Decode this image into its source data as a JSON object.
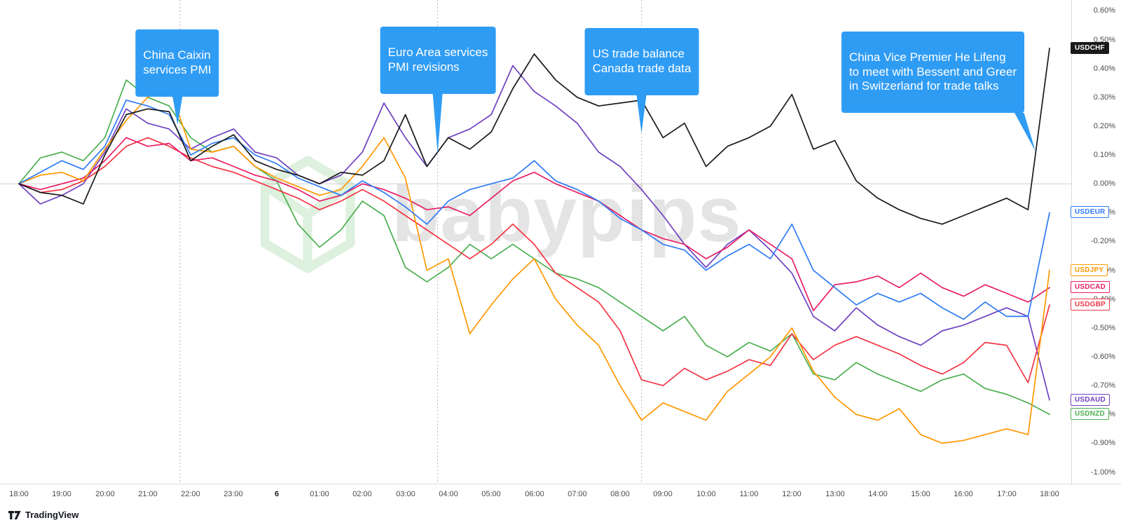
{
  "watermark": {
    "text": "babypips",
    "icon": "babypips-cube-icon"
  },
  "footer": {
    "logo_text": "TradingView"
  },
  "colors": {
    "callout_bg": "#2f9cf4",
    "axis_text": "#4a4a4a",
    "zero_line": "#cfcfcf",
    "event_gridline": "#b5b5b5",
    "axis_border": "#dcdcdc"
  },
  "chart_data": {
    "type": "line",
    "title": "",
    "x_tick_labels": [
      "18:00",
      "19:00",
      "20:00",
      "21:00",
      "22:00",
      "23:00",
      "6",
      "01:00",
      "02:00",
      "03:00",
      "04:00",
      "05:00",
      "06:00",
      "07:00",
      "08:00",
      "09:00",
      "10:00",
      "11:00",
      "12:00",
      "13:00",
      "14:00",
      "15:00",
      "16:00",
      "17:00",
      "18:00"
    ],
    "y_tick_labels": [
      "0.60%",
      "0.50%",
      "0.40%",
      "0.30%",
      "0.20%",
      "0.10%",
      "0.00%",
      "-0.10%",
      "-0.20%",
      "-0.30%",
      "-0.40%",
      "-0.50%",
      "-0.60%",
      "-0.70%",
      "-0.80%",
      "-0.90%",
      "-1.00%"
    ],
    "ylim": [
      -1.04,
      0.6375
    ],
    "x_hours": [
      0,
      24
    ],
    "x_step_hours": 0.5,
    "y_axis_format": "percent",
    "grid": "none",
    "zero_line": true,
    "legend_position": "right-edge-price-labels",
    "series": [
      {
        "name": "USDCHF",
        "color": "#1a1a1a",
        "label_style": "filled",
        "values": [
          0.0,
          -0.03,
          -0.04,
          -0.07,
          0.1,
          0.24,
          0.26,
          0.25,
          0.08,
          0.13,
          0.17,
          0.08,
          0.05,
          0.03,
          0.0,
          0.04,
          0.03,
          0.08,
          0.24,
          0.06,
          0.16,
          0.12,
          0.18,
          0.33,
          0.45,
          0.36,
          0.3,
          0.27,
          0.28,
          0.29,
          0.16,
          0.21,
          0.06,
          0.13,
          0.16,
          0.2,
          0.31,
          0.12,
          0.15,
          0.01,
          -0.05,
          -0.09,
          -0.12,
          -0.14,
          -0.11,
          -0.08,
          -0.05,
          -0.09,
          0.47
        ]
      },
      {
        "name": "USDEUR",
        "color": "#2e7bf6",
        "label_style": "outline",
        "values": [
          0.0,
          0.04,
          0.08,
          0.05,
          0.13,
          0.29,
          0.27,
          0.24,
          0.1,
          0.14,
          0.16,
          0.1,
          0.07,
          0.02,
          -0.01,
          -0.04,
          0.01,
          -0.03,
          -0.08,
          -0.14,
          -0.06,
          -0.02,
          0.0,
          0.02,
          0.08,
          0.01,
          -0.02,
          -0.06,
          -0.12,
          -0.16,
          -0.21,
          -0.23,
          -0.3,
          -0.25,
          -0.21,
          -0.26,
          -0.14,
          -0.3,
          -0.36,
          -0.42,
          -0.38,
          -0.41,
          -0.38,
          -0.43,
          -0.47,
          -0.41,
          -0.46,
          -0.46,
          -0.1
        ]
      },
      {
        "name": "USDJPY",
        "color": "#ff9800",
        "label_style": "outline",
        "values": [
          0.0,
          0.03,
          0.04,
          0.01,
          0.12,
          0.22,
          0.3,
          0.34,
          0.12,
          0.11,
          0.13,
          0.06,
          0.02,
          -0.01,
          -0.04,
          -0.02,
          0.06,
          0.16,
          0.02,
          -0.3,
          -0.26,
          -0.52,
          -0.42,
          -0.33,
          -0.26,
          -0.4,
          -0.49,
          -0.56,
          -0.7,
          -0.82,
          -0.76,
          -0.79,
          -0.82,
          -0.72,
          -0.66,
          -0.6,
          -0.5,
          -0.65,
          -0.74,
          -0.8,
          -0.82,
          -0.78,
          -0.87,
          -0.9,
          -0.89,
          -0.87,
          -0.85,
          -0.87,
          -0.3
        ]
      },
      {
        "name": "USDCAD",
        "color": "#e91e63",
        "label_style": "outline",
        "values": [
          0.0,
          -0.02,
          0.0,
          0.02,
          0.08,
          0.16,
          0.13,
          0.14,
          0.08,
          0.09,
          0.06,
          0.03,
          0.01,
          -0.02,
          -0.06,
          -0.04,
          0.0,
          -0.02,
          -0.05,
          -0.09,
          -0.08,
          -0.11,
          -0.05,
          0.01,
          0.04,
          0.0,
          -0.03,
          -0.06,
          -0.11,
          -0.16,
          -0.19,
          -0.21,
          -0.26,
          -0.22,
          -0.16,
          -0.21,
          -0.26,
          -0.44,
          -0.35,
          -0.34,
          -0.32,
          -0.36,
          -0.31,
          -0.36,
          -0.39,
          -0.35,
          -0.38,
          -0.41,
          -0.36
        ]
      },
      {
        "name": "USDGBP",
        "color": "#f23645",
        "label_style": "outline",
        "values": [
          0.0,
          -0.03,
          -0.02,
          0.01,
          0.06,
          0.13,
          0.16,
          0.13,
          0.09,
          0.06,
          0.04,
          0.01,
          -0.02,
          -0.05,
          -0.09,
          -0.06,
          -0.02,
          -0.06,
          -0.11,
          -0.16,
          -0.21,
          -0.26,
          -0.21,
          -0.14,
          -0.21,
          -0.31,
          -0.36,
          -0.41,
          -0.51,
          -0.68,
          -0.7,
          -0.64,
          -0.68,
          -0.65,
          -0.61,
          -0.63,
          -0.52,
          -0.61,
          -0.56,
          -0.53,
          -0.56,
          -0.59,
          -0.63,
          -0.66,
          -0.62,
          -0.55,
          -0.56,
          -0.69,
          -0.42
        ]
      },
      {
        "name": "USDAUD",
        "color": "#6f42c1",
        "label_style": "outline",
        "values": [
          0.0,
          -0.07,
          -0.04,
          0.0,
          0.11,
          0.26,
          0.21,
          0.19,
          0.12,
          0.16,
          0.19,
          0.11,
          0.09,
          0.03,
          0.0,
          0.03,
          0.11,
          0.28,
          0.16,
          0.06,
          0.16,
          0.19,
          0.24,
          0.41,
          0.32,
          0.27,
          0.21,
          0.11,
          0.06,
          -0.02,
          -0.11,
          -0.21,
          -0.29,
          -0.21,
          -0.16,
          -0.23,
          -0.31,
          -0.46,
          -0.51,
          -0.43,
          -0.49,
          -0.53,
          -0.56,
          -0.51,
          -0.49,
          -0.46,
          -0.43,
          -0.46,
          -0.75
        ]
      },
      {
        "name": "USDNZD",
        "color": "#4caf50",
        "label_style": "outline",
        "values": [
          0.0,
          0.09,
          0.11,
          0.08,
          0.16,
          0.36,
          0.3,
          0.27,
          0.16,
          0.11,
          0.13,
          0.06,
          0.01,
          -0.14,
          -0.22,
          -0.16,
          -0.06,
          -0.11,
          -0.29,
          -0.34,
          -0.29,
          -0.21,
          -0.26,
          -0.21,
          -0.26,
          -0.31,
          -0.33,
          -0.36,
          -0.41,
          -0.46,
          -0.51,
          -0.46,
          -0.56,
          -0.6,
          -0.55,
          -0.58,
          -0.52,
          -0.66,
          -0.68,
          -0.62,
          -0.66,
          -0.69,
          -0.72,
          -0.68,
          -0.66,
          -0.71,
          -0.73,
          -0.76,
          -0.8
        ]
      }
    ],
    "annotations": [
      {
        "text": "China Caixin\nservices PMI",
        "anchor_hour": 3.75,
        "gridline": true
      },
      {
        "text": "Euro Area services\nPMI revisions",
        "anchor_hour": 9.75,
        "gridline": true
      },
      {
        "text": "US trade balance\nCanada trade data",
        "anchor_hour": 14.5,
        "gridline": true
      },
      {
        "text": "China Vice Premier He Lifeng\nto meet with Bessent and Greer\nin Switzerland for trade talks",
        "anchor_hour": 23.75,
        "gridline": false
      }
    ]
  }
}
